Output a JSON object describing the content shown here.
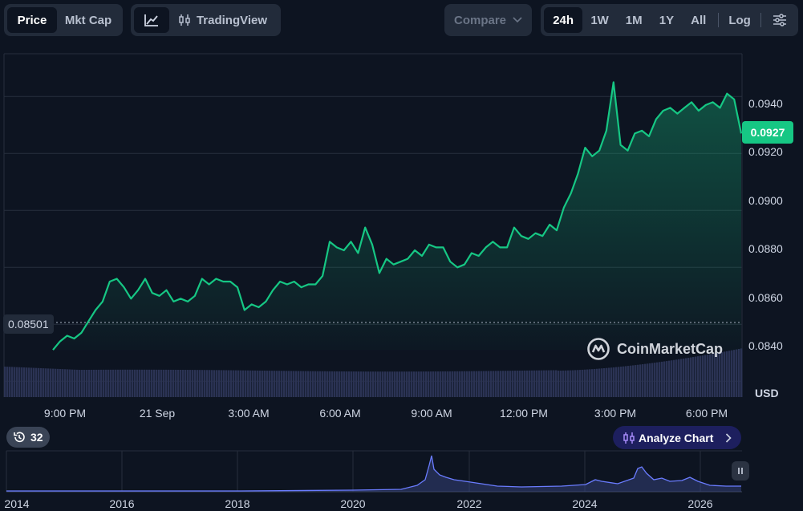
{
  "toolbar": {
    "metric_tabs": [
      {
        "label": "Price",
        "active": true
      },
      {
        "label": "Mkt Cap",
        "active": false
      }
    ],
    "chart_style": {
      "tradingview_label": "TradingView"
    },
    "compare": {
      "label": "Compare"
    },
    "ranges": [
      {
        "label": "24h",
        "active": true
      },
      {
        "label": "1W",
        "active": false
      },
      {
        "label": "1M",
        "active": false
      },
      {
        "label": "1Y",
        "active": false
      },
      {
        "label": "All",
        "active": false
      }
    ],
    "log_label": "Log"
  },
  "chart": {
    "current_price": "0.0927",
    "open_price": "0.08501",
    "currency": "USD",
    "watermark": "CoinMarketCap",
    "y_ticks": [
      "0.0940",
      "0.0920",
      "0.0900",
      "0.0880",
      "0.0860",
      "0.0840"
    ],
    "x_ticks": [
      "9:00 PM",
      "21 Sep",
      "3:00 AM",
      "6:00 AM",
      "9:00 AM",
      "12:00 PM",
      "3:00 PM",
      "6:00 PM"
    ],
    "colors": {
      "line": "#16c784",
      "volume": "#2b3354",
      "background": "#0d1421"
    }
  },
  "history": {
    "count": "32"
  },
  "analyze": {
    "label": "Analyze Chart"
  },
  "mini_chart": {
    "x_ticks": [
      "2014",
      "2016",
      "2018",
      "2020",
      "2022",
      "2024",
      "2026"
    ]
  },
  "chart_data": {
    "type": "line",
    "y_axis_range": [
      0.0835,
      0.0955
    ],
    "values": [
      0.0851,
      0.0854,
      0.0856,
      0.0855,
      0.0857,
      0.0861,
      0.0865,
      0.0868,
      0.0875,
      0.0876,
      0.0873,
      0.0869,
      0.0872,
      0.0876,
      0.0871,
      0.087,
      0.0872,
      0.0868,
      0.0869,
      0.0868,
      0.087,
      0.0876,
      0.0874,
      0.0876,
      0.0875,
      0.0875,
      0.0873,
      0.0865,
      0.0867,
      0.0866,
      0.0868,
      0.0872,
      0.0875,
      0.0874,
      0.0875,
      0.0873,
      0.0874,
      0.0874,
      0.0877,
      0.0889,
      0.0887,
      0.0886,
      0.0889,
      0.0885,
      0.0894,
      0.0888,
      0.0878,
      0.0883,
      0.0881,
      0.0882,
      0.0883,
      0.0886,
      0.0884,
      0.0888,
      0.0887,
      0.0887,
      0.0882,
      0.088,
      0.0881,
      0.0885,
      0.0884,
      0.0887,
      0.0889,
      0.0887,
      0.0887,
      0.0894,
      0.0891,
      0.089,
      0.0892,
      0.0891,
      0.0895,
      0.0893,
      0.0901,
      0.0906,
      0.0913,
      0.0922,
      0.0919,
      0.0921,
      0.0928,
      0.0945,
      0.0923,
      0.0921,
      0.0927,
      0.0928,
      0.0926,
      0.0932,
      0.0935,
      0.0936,
      0.0934,
      0.0936,
      0.0938,
      0.0935,
      0.0937,
      0.0938,
      0.0936,
      0.0941,
      0.0939,
      0.0927
    ]
  }
}
